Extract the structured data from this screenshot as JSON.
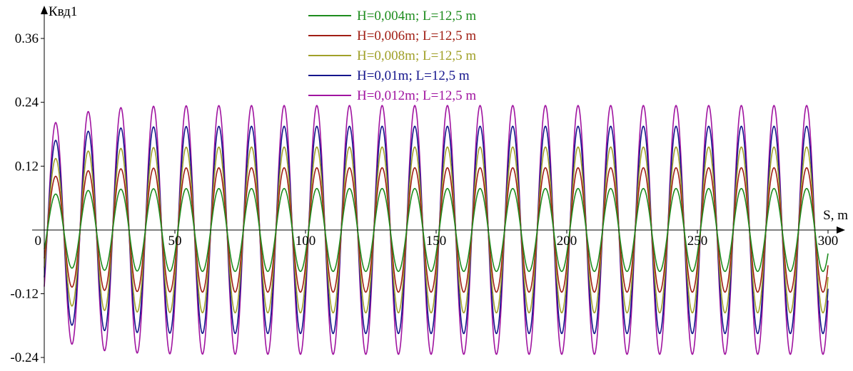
{
  "chart_data": {
    "type": "line",
    "title": "",
    "xlabel": "S, m",
    "ylabel": "Квд1",
    "xlim": [
      0,
      300
    ],
    "ylim": [
      -0.24,
      0.36
    ],
    "x_ticks": [
      {
        "value": 0,
        "label": "0"
      },
      {
        "value": 50,
        "label": "50"
      },
      {
        "value": 100,
        "label": "100"
      },
      {
        "value": 150,
        "label": "150"
      },
      {
        "value": 200,
        "label": "200"
      },
      {
        "value": 250,
        "label": "250"
      },
      {
        "value": 300,
        "label": "300"
      }
    ],
    "y_ticks": [
      {
        "value": 0.36,
        "label": "0.36"
      },
      {
        "value": 0.24,
        "label": "0.24"
      },
      {
        "value": 0.12,
        "label": "0.12"
      },
      {
        "value": -0.12,
        "label": "-0.12"
      },
      {
        "value": -0.24,
        "label": "-0.24"
      }
    ],
    "grid": false,
    "legend_position": "top-center",
    "period_m": 12.5,
    "series": [
      {
        "name": "H=0,004m; L=12,5 m",
        "color": "#1e8c1e",
        "amplitude": 0.078,
        "initial_peak": 0.063
      },
      {
        "name": "H=0,006m; L=12,5 m",
        "color": "#a01e14",
        "amplitude": 0.117,
        "initial_peak": 0.094
      },
      {
        "name": "H=0,008m; L=12,5 m",
        "color": "#a0a028",
        "amplitude": 0.156,
        "initial_peak": 0.125
      },
      {
        "name": "H=0,01m; L=12,5 m",
        "color": "#14148c",
        "amplitude": 0.195,
        "initial_peak": 0.157
      },
      {
        "name": "H=0,012m; L=12,5 m",
        "color": "#a014a0",
        "amplitude": 0.234,
        "initial_peak": 0.188
      }
    ]
  }
}
